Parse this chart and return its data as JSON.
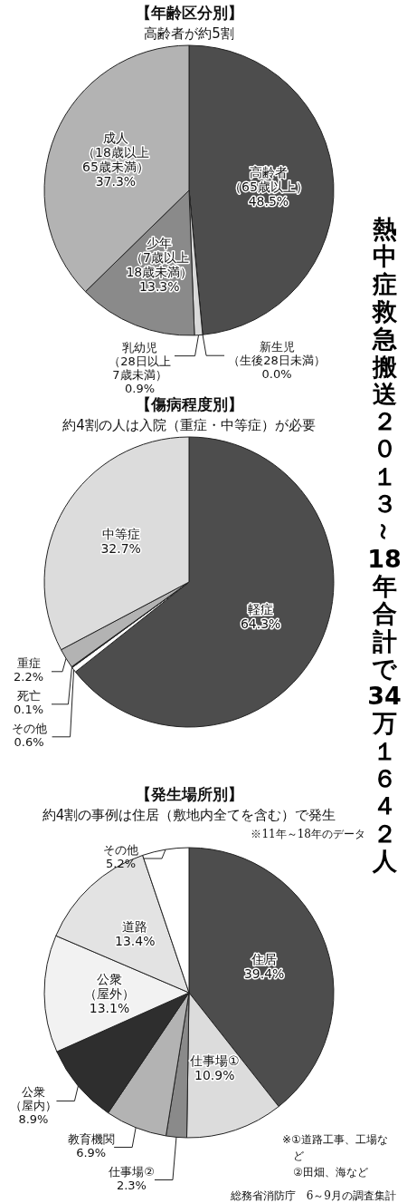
{
  "chart_data": [
    {
      "type": "pie",
      "title": "【年齢区分別】",
      "subtitle": "高齢者が約5割",
      "categories": [
        "高齢者（65歳以上）",
        "新生児（生後28日未満）",
        "乳幼児（28日以上7歳未満）",
        "少年（7歳以上18歳未満）",
        "成人（18歳以上65歳未満）"
      ],
      "values": [
        48.5,
        0.0,
        0.9,
        13.3,
        37.3
      ],
      "value_labels": [
        "48.5%",
        "0.0%",
        "0.9%",
        "13.3%",
        "37.3%"
      ],
      "colors": [
        "#4d4d4d",
        "#ffffff",
        "#d9d9d9",
        "#8a8a8a",
        "#b3b3b3"
      ]
    },
    {
      "type": "pie",
      "title": "【傷病程度別】",
      "subtitle": "約4割の人は入院（重症・中等症）が必要",
      "categories": [
        "軽症",
        "その他",
        "死亡",
        "重症",
        "中等症"
      ],
      "values": [
        64.3,
        0.6,
        0.1,
        2.2,
        32.7
      ],
      "value_labels": [
        "64.3%",
        "0.6%",
        "0.1%",
        "2.2%",
        "32.7%"
      ],
      "colors": [
        "#4d4d4d",
        "#ffffff",
        "#333333",
        "#b3b3b3",
        "#dcdcdc"
      ]
    },
    {
      "type": "pie",
      "title": "【発生場所別】",
      "subtitle": "約4割の事例は住居（敷地内全てを含む）で発生",
      "categories": [
        "住居",
        "仕事場①",
        "仕事場②",
        "教育機関",
        "公衆（屋内）",
        "公衆（屋外）",
        "道路",
        "その他"
      ],
      "values": [
        39.4,
        10.9,
        2.3,
        6.9,
        8.9,
        13.1,
        13.4,
        5.2
      ],
      "value_labels": [
        "39.4%",
        "10.9%",
        "2.3%",
        "6.9%",
        "8.9%",
        "13.1%",
        "13.4%",
        "5.2%"
      ],
      "colors": [
        "#4d4d4d",
        "#dcdcdc",
        "#8a8a8a",
        "#b3b3b3",
        "#2e2e2e",
        "#f2f2f2",
        "#e3e3e3",
        "#ffffff"
      ],
      "annotations": [
        "※11年～18年のデータ",
        "※①道路工事、工場など②田畑、海など",
        "総務省消防庁　6～9月の調査集計"
      ]
    },
    {
      "type": "other",
      "title": "熱中症救急搬送２０１３～18年合計で34万１６４２人"
    }
  ]
}
